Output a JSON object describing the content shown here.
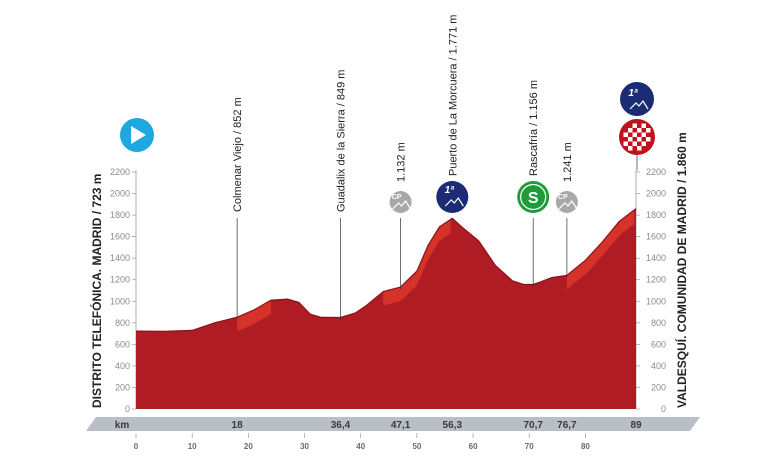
{
  "chart_data": {
    "type": "area",
    "title": "",
    "xlabel": "km",
    "ylabel": "",
    "xlim": [
      0,
      89
    ],
    "ylim": [
      0,
      2200
    ],
    "y_ticks": [
      "0",
      "200",
      "400",
      "600",
      "800",
      "1000",
      "1200",
      "1400",
      "1600",
      "1800",
      "2000",
      "2200"
    ],
    "x_ticks": [
      "0",
      "10",
      "20",
      "30",
      "40",
      "50",
      "60",
      "70",
      "80"
    ],
    "grid": false,
    "profile": {
      "x": [
        0,
        5,
        10,
        14,
        18,
        21,
        24,
        27,
        29,
        31,
        33,
        36.4,
        39,
        41,
        44,
        47.1,
        50,
        52,
        54,
        56.3,
        58,
        61,
        64,
        67,
        69,
        70.7,
        72,
        74,
        76.7,
        80,
        83,
        86,
        89
      ],
      "y": [
        723,
        720,
        730,
        800,
        852,
        920,
        1010,
        1020,
        990,
        880,
        850,
        849,
        890,
        960,
        1090,
        1132,
        1280,
        1520,
        1690,
        1771,
        1690,
        1560,
        1330,
        1190,
        1156,
        1156,
        1180,
        1220,
        1241,
        1380,
        1550,
        1740,
        1860
      ]
    },
    "distance_marks": [
      "18",
      "36,4",
      "47,1",
      "56,3",
      "70,7",
      "76,7",
      "89"
    ],
    "waypoints": [
      {
        "km": 18,
        "alt": 852,
        "label": "Colmenar Viejo / 852 m",
        "badge": ""
      },
      {
        "km": 36.4,
        "alt": 849,
        "label": "Guadalix de la Sierra / 849 m",
        "badge": ""
      },
      {
        "km": 47.1,
        "alt": 1132,
        "label": "1.132 m",
        "badge": "cp"
      },
      {
        "km": 56.3,
        "alt": 1771,
        "label": "Puerto de La Morcuera / 1.771 m",
        "badge": "1a"
      },
      {
        "km": 70.7,
        "alt": 1156,
        "label": "Rascafría / 1.156 m",
        "badge": "S"
      },
      {
        "km": 76.7,
        "alt": 1241,
        "label": "1.241 m",
        "badge": "cp"
      }
    ],
    "start_label": "DISTRITO TELEFÓNICA. MADRID / 723 m",
    "finish_label": "VALDESQUÍ. COMUNIDAD DE MADRID / 1.860 m",
    "badges": {
      "category_1": "1ª",
      "sprint": "S",
      "minor_climb": "CP"
    },
    "colors": {
      "profile_fill": "#b01c24",
      "profile_dark": "#8a1219",
      "steep_overlay": "#e23a2c",
      "start_blue": "#1ea8e0",
      "climb_navy": "#1b2c74",
      "sprint_green": "#1f9b3a",
      "minor_grey": "#a8a8a8",
      "finish_red": "#c0111c",
      "km_bar": "#b9bfc6"
    }
  }
}
